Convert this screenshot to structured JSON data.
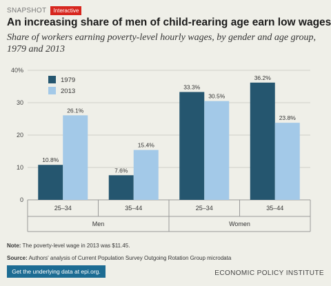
{
  "header": {
    "kicker": "SNAPSHOT",
    "badge": "Interactive",
    "title": "An increasing share of men of child-rearing age earn low wages",
    "subtitle": "Share of workers earning poverty-level hourly wages, by gender and age group, 1979 and 2013"
  },
  "colors": {
    "series_1979": "#25566f",
    "series_2013": "#a3c9e8",
    "background": "#efefe8",
    "link_bg": "#1d6c93"
  },
  "chart_data": {
    "type": "bar",
    "categories": [
      "25–34",
      "35–44",
      "25–34",
      "35–44"
    ],
    "groups": [
      {
        "label": "Men",
        "span": 2
      },
      {
        "label": "Women",
        "span": 2
      }
    ],
    "series": [
      {
        "name": "1979",
        "values": [
          10.8,
          7.6,
          33.3,
          36.2
        ],
        "labels": [
          "10.8%",
          "7.6%",
          "33.3%",
          "36.2%"
        ]
      },
      {
        "name": "2013",
        "values": [
          26.1,
          15.4,
          30.5,
          23.8
        ],
        "labels": [
          "26.1%",
          "15.4%",
          "30.5%",
          "23.8%"
        ]
      }
    ],
    "yticks": [
      0,
      10,
      20,
      30,
      40
    ],
    "ytick_labels": [
      "0",
      "10",
      "20",
      "30",
      "40%"
    ],
    "ylim": [
      0,
      40
    ],
    "legend_position": "top-left",
    "grid": true
  },
  "footer": {
    "note_label": "Note:",
    "note_text": "The poverty-level wage in 2013 was $11.45.",
    "source_label": "Source:",
    "source_text": "Authors' analysis of Current Population Survey Outgoing Rotation Group microdata",
    "link_text": "Get the underlying data at epi.org.",
    "org": "ECONOMIC POLICY INSTITUTE"
  }
}
